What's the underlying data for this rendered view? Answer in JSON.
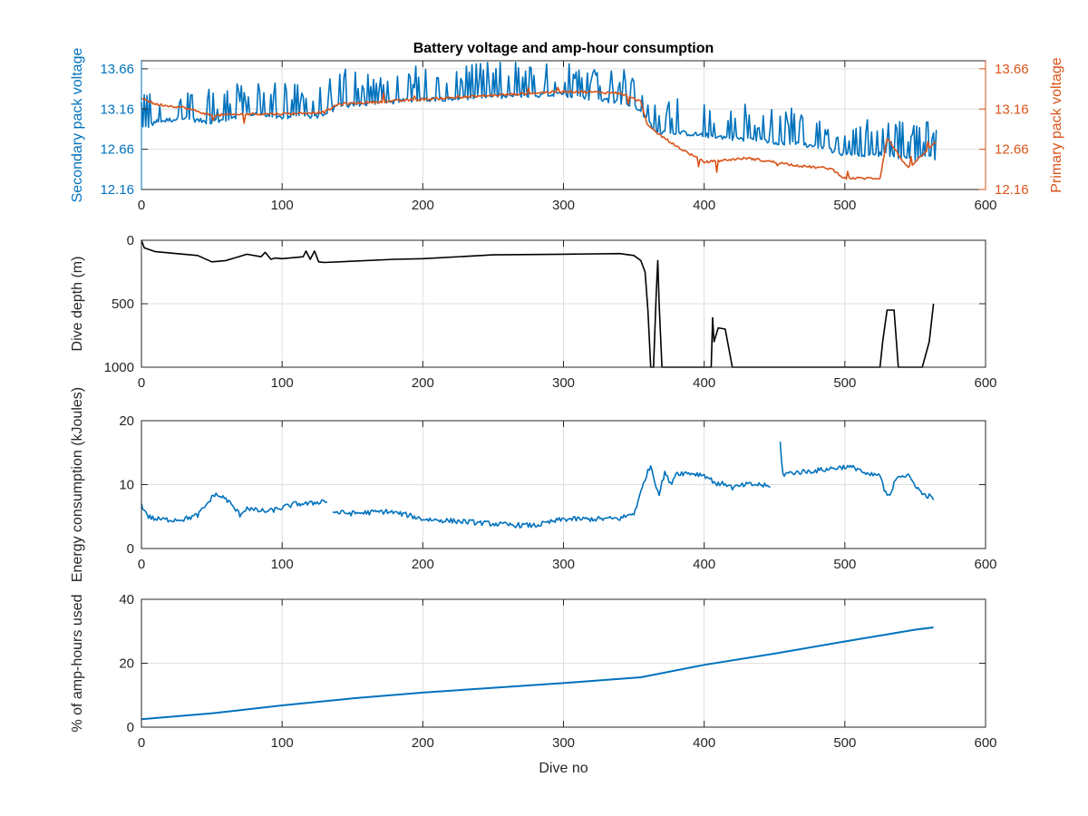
{
  "figure": {
    "background": "#ffffff"
  },
  "chart_data": [
    {
      "type": "line",
      "title": "Battery voltage and amp-hour consumption",
      "xlabel": "",
      "ylabel": "Secondary pack voltage",
      "ylabel_right": "Primary pack voltage",
      "xlim": [
        0,
        600
      ],
      "xticks": [
        0,
        100,
        200,
        300,
        400,
        500,
        600
      ],
      "xtick_labels": [
        "0",
        "100",
        "200",
        "300",
        "400",
        "500",
        "600"
      ],
      "ylim": [
        12.16,
        13.76
      ],
      "yticks": [
        12.16,
        12.66,
        13.16,
        13.66
      ],
      "ytick_labels": [
        "12.16",
        "12.66",
        "13.16",
        "13.66"
      ],
      "ylim_right": [
        12.16,
        13.76
      ],
      "yticks_right_labels": [
        "12.16",
        "12.66",
        "13.16",
        "13.66"
      ],
      "grid": true,
      "series": [
        {
          "color": "#0072bd",
          "axis": "left",
          "style": "spiky",
          "x": [
            0,
            10,
            30,
            50,
            80,
            100,
            130,
            140,
            200,
            300,
            340,
            355,
            365,
            380,
            420,
            450,
            480,
            500,
            530,
            545,
            565
          ],
          "y": [
            12.9,
            13.0,
            13.05,
            12.99,
            13.1,
            13.05,
            13.08,
            13.2,
            13.28,
            13.34,
            13.25,
            13.15,
            12.88,
            12.87,
            12.8,
            12.75,
            12.7,
            12.6,
            12.6,
            12.55,
            12.55
          ]
        },
        {
          "color": "#d95319",
          "axis": "right",
          "style": "step",
          "x": [
            0,
            10,
            30,
            50,
            80,
            100,
            130,
            140,
            200,
            300,
            340,
            355,
            360,
            365,
            380,
            400,
            430,
            450,
            470,
            490,
            500,
            525,
            530,
            545,
            565
          ],
          "y": [
            13.3,
            13.22,
            13.18,
            13.08,
            13.1,
            13.1,
            13.12,
            13.22,
            13.28,
            13.38,
            13.36,
            13.25,
            12.95,
            12.88,
            12.7,
            12.5,
            12.55,
            12.5,
            12.45,
            12.42,
            12.3,
            12.3,
            12.8,
            12.42,
            12.75
          ]
        }
      ]
    },
    {
      "type": "line",
      "title": "",
      "xlabel": "",
      "ylabel": "Dive depth (m)",
      "xlim": [
        0,
        600
      ],
      "xticks": [
        0,
        100,
        200,
        300,
        400,
        500,
        600
      ],
      "xtick_labels": [
        "0",
        "100",
        "200",
        "300",
        "400",
        "500",
        "600"
      ],
      "ylim": [
        0,
        1000
      ],
      "y_reversed": true,
      "yticks": [
        0,
        500,
        1000
      ],
      "ytick_labels": [
        "0",
        "500",
        "1000"
      ],
      "grid": true,
      "series": [
        {
          "color": "#000000",
          "x": [
            0,
            2,
            10,
            40,
            50,
            60,
            75,
            85,
            88,
            92,
            95,
            100,
            115,
            117,
            120,
            123,
            126,
            130,
            180,
            200,
            250,
            300,
            340,
            350,
            355,
            358,
            360,
            362,
            364,
            366,
            367,
            368,
            370,
            372,
            380,
            400,
            405,
            406,
            407,
            410,
            415,
            420,
            430,
            500,
            525,
            527,
            530,
            535,
            538,
            540,
            550,
            555,
            560,
            563
          ],
          "y": [
            0,
            60,
            90,
            120,
            170,
            160,
            110,
            130,
            95,
            150,
            140,
            145,
            130,
            85,
            150,
            85,
            170,
            175,
            150,
            145,
            115,
            110,
            105,
            120,
            160,
            250,
            550,
            1000,
            1000,
            400,
            160,
            500,
            1000,
            1000,
            1000,
            1000,
            1000,
            610,
            800,
            690,
            700,
            1000,
            1000,
            1000,
            1000,
            790,
            550,
            550,
            1000,
            1000,
            1000,
            1000,
            800,
            500
          ]
        }
      ]
    },
    {
      "type": "line",
      "title": "",
      "xlabel": "",
      "ylabel": "Energy consumption (kJoules)",
      "xlim": [
        0,
        600
      ],
      "xticks": [
        0,
        100,
        200,
        300,
        400,
        500,
        600
      ],
      "xtick_labels": [
        "0",
        "100",
        "200",
        "300",
        "400",
        "500",
        "600"
      ],
      "ylim": [
        0,
        20
      ],
      "yticks": [
        0,
        10,
        20
      ],
      "ytick_labels": [
        "0",
        "10",
        "20"
      ],
      "grid": true,
      "series": [
        {
          "color": "#0072bd",
          "segments": [
            {
              "x": [
                0,
                5,
                10,
                20,
                30,
                40,
                45,
                52,
                60,
                70,
                75,
                80,
                90,
                100,
                110,
                120,
                130,
                132
              ],
              "y": [
                6.8,
                5.0,
                4.6,
                4.5,
                4.6,
                5.2,
                6.5,
                8.5,
                7.8,
                5.3,
                6.4,
                6.0,
                5.8,
                6.4,
                7.0,
                7.0,
                7.5,
                7.3
              ]
            },
            {
              "x": [
                136,
                150,
                175,
                190,
                200,
                230,
                260,
                280,
                290,
                300,
                320,
                340,
                350,
                354,
                358,
                362,
                365,
                368,
                372,
                376,
                380,
                390,
                400,
                410,
                415,
                420,
                430,
                440,
                447
              ],
              "y": [
                5.7,
                5.5,
                5.8,
                5.2,
                4.6,
                4.2,
                3.7,
                3.6,
                4.1,
                4.6,
                4.6,
                4.7,
                5.5,
                8.0,
                11.0,
                13.0,
                10.5,
                8.5,
                12.0,
                10.0,
                11.8,
                11.8,
                11.5,
                10.0,
                10.2,
                9.5,
                10.0,
                10.0,
                9.6
              ]
            },
            {
              "x": [
                454,
                456,
                460,
                480,
                500,
                510,
                515,
                525,
                528,
                532,
                535,
                538,
                545,
                550,
                555,
                560,
                563
              ],
              "y": [
                16.5,
                11.5,
                11.8,
                12.2,
                12.8,
                12.5,
                11.5,
                11.5,
                9.0,
                8.0,
                10.5,
                11.5,
                11.3,
                10.0,
                8.5,
                8.2,
                7.6
              ]
            }
          ]
        }
      ]
    },
    {
      "type": "line",
      "title": "",
      "xlabel": "Dive no",
      "ylabel": "% of amp-hours used",
      "xlim": [
        0,
        600
      ],
      "xticks": [
        0,
        100,
        200,
        300,
        400,
        500,
        600
      ],
      "xtick_labels": [
        "0",
        "100",
        "200",
        "300",
        "400",
        "500",
        "600"
      ],
      "ylim": [
        0,
        40
      ],
      "yticks": [
        0,
        20,
        40
      ],
      "ytick_labels": [
        "0",
        "20",
        "40"
      ],
      "grid": true,
      "series": [
        {
          "color": "#0072bd",
          "x": [
            0,
            50,
            100,
            150,
            200,
            250,
            300,
            355,
            400,
            450,
            500,
            550,
            563
          ],
          "y": [
            2.5,
            4.3,
            6.8,
            9.0,
            10.8,
            12.3,
            13.8,
            15.6,
            19.5,
            23.0,
            26.8,
            30.5,
            31.2
          ]
        }
      ]
    }
  ]
}
